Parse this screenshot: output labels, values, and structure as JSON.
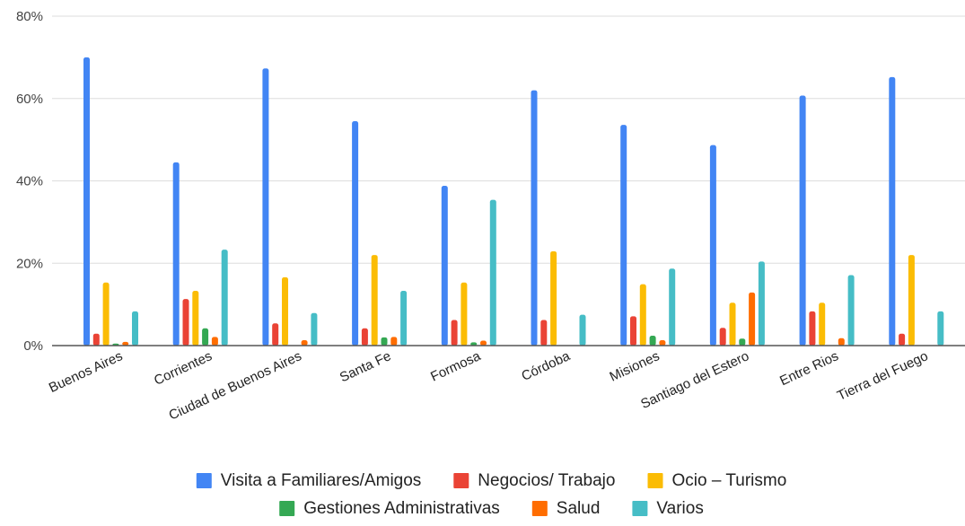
{
  "chart_data": {
    "type": "bar",
    "title": "",
    "xlabel": "",
    "ylabel": "",
    "ylim": [
      0,
      80
    ],
    "yticks": [
      "0%",
      "20%",
      "40%",
      "60%",
      "80%"
    ],
    "ytick_values": [
      0,
      20,
      40,
      60,
      80
    ],
    "grid": true,
    "legend_position": "bottom",
    "categories": [
      "Buenos Aires",
      "Corrientes",
      "Ciudad de Buenos Aires",
      "Santa Fe",
      "Formosa",
      "Córdoba",
      "Misiones",
      "Santiago del Estero",
      "Entre Rios",
      "Tierra del Fuego"
    ],
    "series": [
      {
        "name": "Visita a Familiares/Amigos",
        "color": "#4285f4",
        "values": [
          70,
          44.5,
          67.3,
          54.5,
          38.8,
          62,
          53.6,
          48.7,
          60.7,
          65.2
        ]
      },
      {
        "name": "Negocios/ Trabajo",
        "color": "#ea4335",
        "values": [
          2.9,
          11.3,
          5.4,
          4.2,
          6.2,
          6.2,
          7.1,
          4.3,
          8.3,
          2.9
        ]
      },
      {
        "name": "Ocio – Turismo",
        "color": "#fbbc04",
        "values": [
          15.3,
          13.3,
          16.6,
          22,
          15.3,
          22.9,
          14.9,
          10.4,
          10.4,
          22
        ]
      },
      {
        "name": "Gestiones Administrativas",
        "color": "#34a853",
        "values": [
          0.5,
          4.2,
          0,
          2,
          0.8,
          0,
          2.4,
          1.7,
          0,
          0
        ]
      },
      {
        "name": "Salud",
        "color": "#ff6d01",
        "values": [
          0.9,
          2.1,
          1.3,
          2.1,
          1.2,
          0,
          1.3,
          12.9,
          1.8,
          0
        ]
      },
      {
        "name": "Varios",
        "color": "#46bdc6",
        "values": [
          8.3,
          23.3,
          7.9,
          13.3,
          35.4,
          7.5,
          18.7,
          20.4,
          17.1,
          8.3
        ]
      }
    ]
  }
}
